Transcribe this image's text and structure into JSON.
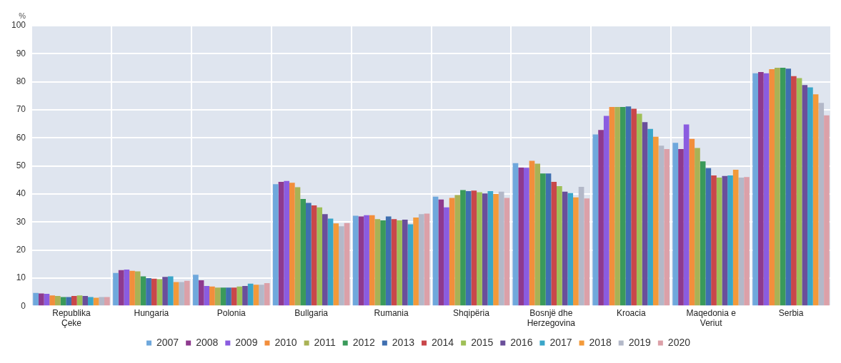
{
  "chart_data": {
    "type": "bar",
    "ylabel": "%",
    "categories": [
      "Republika\nÇeke",
      "Hungaria",
      "Polonia",
      "Bullgaria",
      "Rumania",
      "Shqipëria",
      "Bosnjë dhe\nHerzegovina",
      "Kroacia",
      "Maqedonia e\nVeriut",
      "Serbia"
    ],
    "series": [
      {
        "name": "2007",
        "color": "#6fa8dc",
        "values": [
          4.7,
          11.8,
          11.2,
          43.5,
          32.2,
          39,
          51,
          61.2,
          58.2,
          83
        ]
      },
      {
        "name": "2008",
        "color": "#8e3a8e",
        "values": [
          4.5,
          12.8,
          9.2,
          44.3,
          32,
          38,
          49.4,
          62.8,
          56,
          83.5
        ]
      },
      {
        "name": "2009",
        "color": "#8a5ce0",
        "values": [
          4.4,
          13,
          7.2,
          44.6,
          32.4,
          35.2,
          49.3,
          67.8,
          64.8,
          83
        ]
      },
      {
        "name": "2010",
        "color": "#f28e3c",
        "values": [
          3.8,
          12.6,
          7,
          44,
          32.4,
          38.6,
          51.8,
          71,
          59.6,
          84.5
        ]
      },
      {
        "name": "2011",
        "color": "#a9b255",
        "values": [
          3.6,
          12.4,
          6.6,
          42.4,
          31,
          39.6,
          50.8,
          71,
          56.4,
          85
        ]
      },
      {
        "name": "2012",
        "color": "#3a9a5a",
        "values": [
          3.2,
          10.6,
          6.6,
          38.2,
          30.6,
          41.4,
          47.3,
          71,
          51.6,
          85
        ]
      },
      {
        "name": "2013",
        "color": "#3f6fb0",
        "values": [
          3.2,
          10,
          6.6,
          36.8,
          32,
          41,
          47.3,
          71.2,
          49.2,
          84.7
        ]
      },
      {
        "name": "2014",
        "color": "#c9474a",
        "values": [
          3.6,
          9.8,
          6.6,
          35.9,
          31,
          41.2,
          44.3,
          70.4,
          46.6,
          82
        ]
      },
      {
        "name": "2015",
        "color": "#9fbf57",
        "values": [
          3.8,
          9.6,
          7,
          35.2,
          30.6,
          40.6,
          42.8,
          68.6,
          45.8,
          81.3
        ]
      },
      {
        "name": "2016",
        "color": "#6a4f9a",
        "values": [
          3.6,
          10.4,
          7.2,
          32.8,
          30.8,
          40.2,
          40.8,
          65.6,
          46.4,
          78.8
        ]
      },
      {
        "name": "2017",
        "color": "#3aa6c9",
        "values": [
          3.2,
          10.6,
          8,
          31.2,
          29.2,
          41,
          40.3,
          63.2,
          46.6,
          78
        ]
      },
      {
        "name": "2018",
        "color": "#f39a3a",
        "values": [
          3,
          8.6,
          7.6,
          29.5,
          31.6,
          40,
          38.8,
          60.4,
          48.6,
          75.5
        ]
      },
      {
        "name": "2019",
        "color": "#b3b8c8",
        "values": [
          3.2,
          8.6,
          7.6,
          28.5,
          32.8,
          40.8,
          42.5,
          57.2,
          45.8,
          72.5
        ]
      },
      {
        "name": "2020",
        "color": "#dca0a8",
        "values": [
          3.2,
          9,
          8.2,
          29.6,
          33,
          38.6,
          38.4,
          56,
          46,
          68
        ]
      }
    ],
    "ylim": [
      0,
      100
    ],
    "yticks": [
      0,
      10,
      20,
      30,
      40,
      50,
      60,
      70,
      80,
      90,
      100
    ],
    "grid": true,
    "legend": "bottom"
  }
}
